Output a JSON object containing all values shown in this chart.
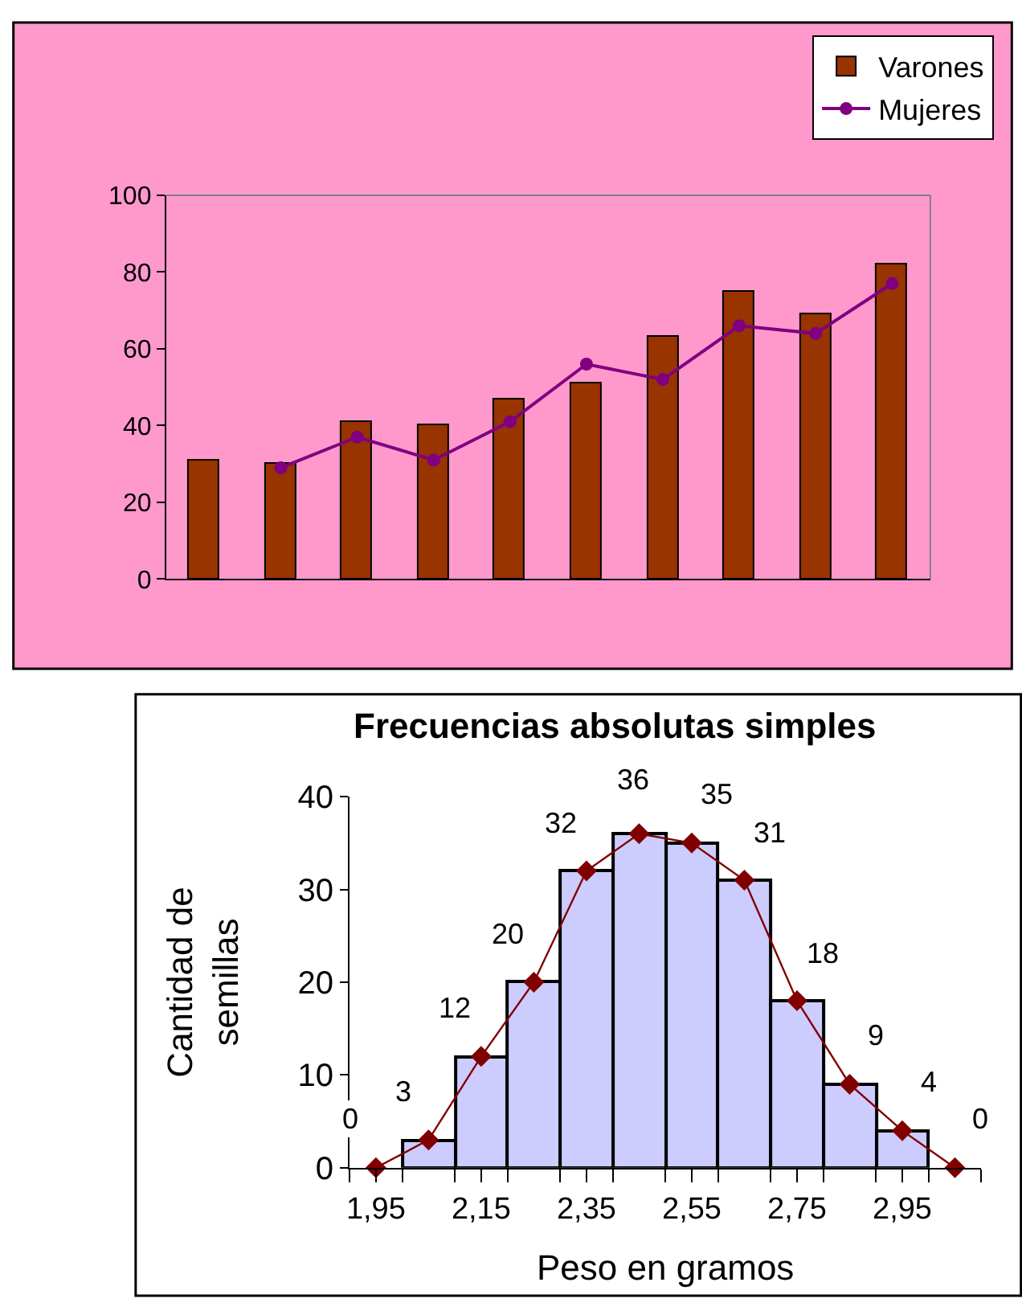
{
  "chart_data": [
    {
      "type": "bar",
      "categories": [
        null,
        null,
        null,
        null,
        null,
        null,
        null,
        null,
        null,
        null
      ],
      "series": [
        {
          "name": "Varones",
          "color": "#993300",
          "values": [
            31,
            30,
            41,
            40,
            47,
            51,
            63,
            75,
            69,
            82
          ]
        },
        {
          "name": "Mujeres",
          "type": "line",
          "color": "#800080",
          "marker": "circle",
          "values": [
            null,
            29,
            37,
            31,
            41,
            56,
            52,
            66,
            64,
            77
          ]
        }
      ],
      "ylim": [
        0,
        100
      ],
      "yticks": [
        0,
        20,
        40,
        60,
        80,
        100
      ],
      "legend": "top right",
      "grid": false
    },
    {
      "type": "histogram",
      "title": "Frecuencias absolutas simples",
      "xlabel": "Peso en gramos",
      "ylabel": "Cantidad de semillas",
      "series": [
        {
          "color": "#ccccff",
          "bins": [
            2.0,
            2.1,
            2.2,
            2.3,
            2.4,
            2.5,
            2.6,
            2.7,
            2.8,
            2.9,
            3.0
          ],
          "values": [
            3,
            12,
            20,
            32,
            36,
            35,
            31,
            18,
            9,
            4
          ]
        },
        {
          "type": "line",
          "color": "#800000",
          "marker": "diamond",
          "data_labels": true,
          "x": [
            1.95,
            2.05,
            2.15,
            2.25,
            2.35,
            2.45,
            2.55,
            2.65,
            2.75,
            2.85,
            2.95,
            3.05
          ],
          "values": [
            0,
            3,
            12,
            20,
            32,
            36,
            35,
            31,
            18,
            9,
            4,
            0
          ]
        }
      ],
      "xlim": [
        1.9,
        3.1
      ],
      "xticks": [
        {
          "value": 1.9,
          "label": null
        },
        {
          "value": 1.95,
          "label": "1,95"
        },
        {
          "value": 2.0,
          "label": null
        },
        {
          "value": 2.1,
          "label": null
        },
        {
          "value": 2.15,
          "label": "2,15"
        },
        {
          "value": 2.2,
          "label": null
        },
        {
          "value": 2.3,
          "label": null
        },
        {
          "value": 2.35,
          "label": "2,35"
        },
        {
          "value": 2.4,
          "label": null
        },
        {
          "value": 2.5,
          "label": null
        },
        {
          "value": 2.55,
          "label": "2,55"
        },
        {
          "value": 2.6,
          "label": null
        },
        {
          "value": 2.7,
          "label": null
        },
        {
          "value": 2.75,
          "label": "2,75"
        },
        {
          "value": 2.8,
          "label": null
        },
        {
          "value": 2.9,
          "label": null
        },
        {
          "value": 2.95,
          "label": "2,95"
        },
        {
          "value": 3.0,
          "label": null
        },
        {
          "value": 3.1,
          "label": null
        }
      ],
      "ylim": [
        0,
        40
      ],
      "yticks": [
        0,
        10,
        20,
        30,
        40
      ],
      "grid": false
    }
  ]
}
